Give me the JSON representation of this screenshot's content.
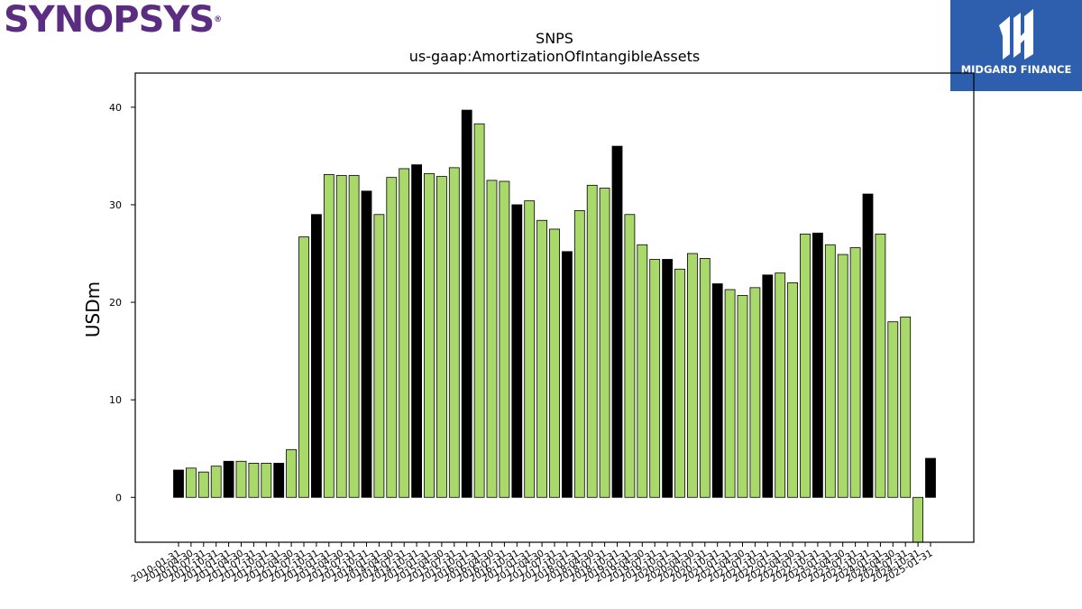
{
  "brand": {
    "logo_text": "SYNOPSYS",
    "registered": "®"
  },
  "partner": {
    "name": "MIDGARD FINANCE"
  },
  "colors": {
    "normal_bar": "#a8d96a",
    "q4_bar": "#000000",
    "badge_bg": "#2d5fae",
    "brand": "#5a2d82"
  },
  "chart_data": {
    "type": "bar",
    "title": "SNPS",
    "subtitle": "us-gaap:AmortizationOfIntangibleAssets",
    "xlabel": "",
    "ylabel": "USDm",
    "ylim": [
      -4.6,
      43.5
    ],
    "yticks": [
      0,
      10,
      20,
      30,
      40
    ],
    "grid": false,
    "categories": [
      "2010-01-31",
      "2010-04-30",
      "2010-07-31",
      "2010-10-31",
      "2011-01-31",
      "2011-04-30",
      "2011-07-31",
      "2011-10-31",
      "2012-01-31",
      "2012-04-30",
      "2012-07-31",
      "2012-10-31",
      "2013-01-31",
      "2013-04-30",
      "2013-07-31",
      "2013-10-31",
      "2014-01-31",
      "2014-04-30",
      "2014-07-31",
      "2014-10-31",
      "2015-01-31",
      "2015-04-30",
      "2015-07-31",
      "2015-10-31",
      "2016-01-31",
      "2016-04-30",
      "2016-07-31",
      "2016-10-31",
      "2017-01-31",
      "2017-04-30",
      "2017-07-31",
      "2017-10-31",
      "2018-01-31",
      "2018-04-30",
      "2018-07-31",
      "2018-10-31",
      "2019-01-31",
      "2019-04-30",
      "2019-07-31",
      "2019-10-31",
      "2020-01-31",
      "2020-04-30",
      "2020-07-31",
      "2020-10-31",
      "2021-01-31",
      "2021-04-30",
      "2021-07-31",
      "2021-10-31",
      "2022-01-31",
      "2022-04-30",
      "2022-07-31",
      "2022-10-31",
      "2023-01-31",
      "2023-04-30",
      "2023-07-31",
      "2023-10-31",
      "2024-01-31",
      "2024-04-30",
      "2024-07-31",
      "2024-10-31",
      "2025-01-31"
    ],
    "values": [
      2.8,
      3.0,
      2.6,
      3.2,
      3.7,
      3.7,
      3.5,
      3.5,
      3.5,
      4.9,
      26.7,
      29.0,
      33.1,
      33.0,
      33.0,
      31.4,
      29.0,
      32.8,
      33.7,
      34.1,
      33.2,
      32.9,
      33.8,
      39.7,
      38.3,
      32.5,
      32.4,
      30.0,
      30.4,
      28.4,
      27.5,
      25.2,
      29.4,
      32.0,
      31.7,
      36.0,
      29.0,
      25.9,
      24.4,
      24.4,
      23.4,
      25.0,
      24.5,
      21.9,
      21.3,
      20.7,
      21.5,
      22.8,
      23.0,
      22.0,
      27.0,
      27.1,
      25.9,
      24.9,
      25.6,
      31.1,
      27.0,
      18.0,
      18.5,
      -4.6,
      4.0
    ],
    "q4_categories": [
      "2010-01-31",
      "2011-01-31",
      "2012-01-31",
      "2012-10-31",
      "2013-10-31",
      "2014-10-31",
      "2015-10-31",
      "2016-10-31",
      "2017-10-31",
      "2018-10-31",
      "2019-10-31",
      "2020-10-31",
      "2021-10-31",
      "2022-10-31",
      "2023-10-31",
      "2025-01-31"
    ]
  }
}
